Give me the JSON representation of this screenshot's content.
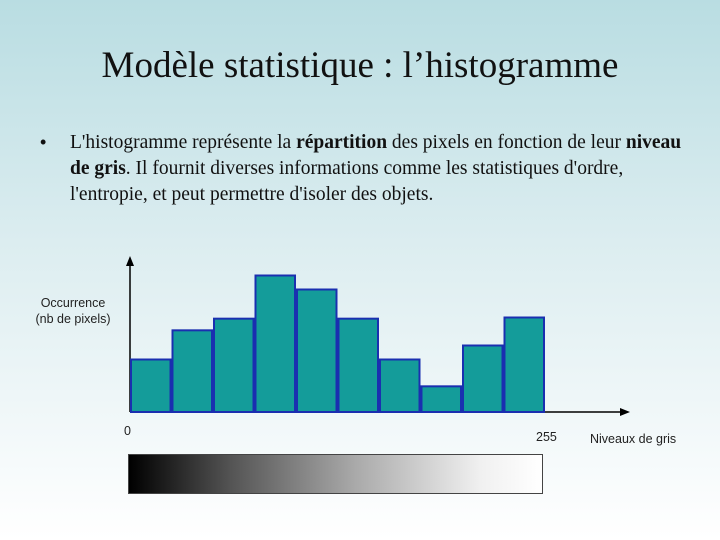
{
  "slide": {
    "title": "Modèle statistique : l’histogramme",
    "bullet": {
      "symbol": "•",
      "parts": [
        {
          "text": "L'histogramme représente la ",
          "bold": false
        },
        {
          "text": "répartition",
          "bold": true
        },
        {
          "text": " des pixels en fonction de leur ",
          "bold": false
        },
        {
          "text": "niveau de gris",
          "bold": true
        },
        {
          "text": ". Il fournit diverses informations comme les statistiques d'ordre, l'entropie, et peut permettre d'isoler des objets.",
          "bold": false
        }
      ]
    }
  },
  "chart_data": {
    "type": "bar",
    "ylabel_line1": "Occurrence",
    "ylabel_line2": "(nb  de  pixels)",
    "xlabel": "Niveaux de gris",
    "x_min_label": "0",
    "x_max_label": "255",
    "values": [
      45,
      70,
      80,
      117,
      105,
      80,
      45,
      22,
      57,
      81
    ],
    "ylim": [
      0,
      150
    ],
    "bar_fill": "#149c9a",
    "bar_stroke": "#1a2fb0",
    "axis_color": "#000000",
    "gradient": [
      "#000000",
      "#ffffff"
    ]
  }
}
